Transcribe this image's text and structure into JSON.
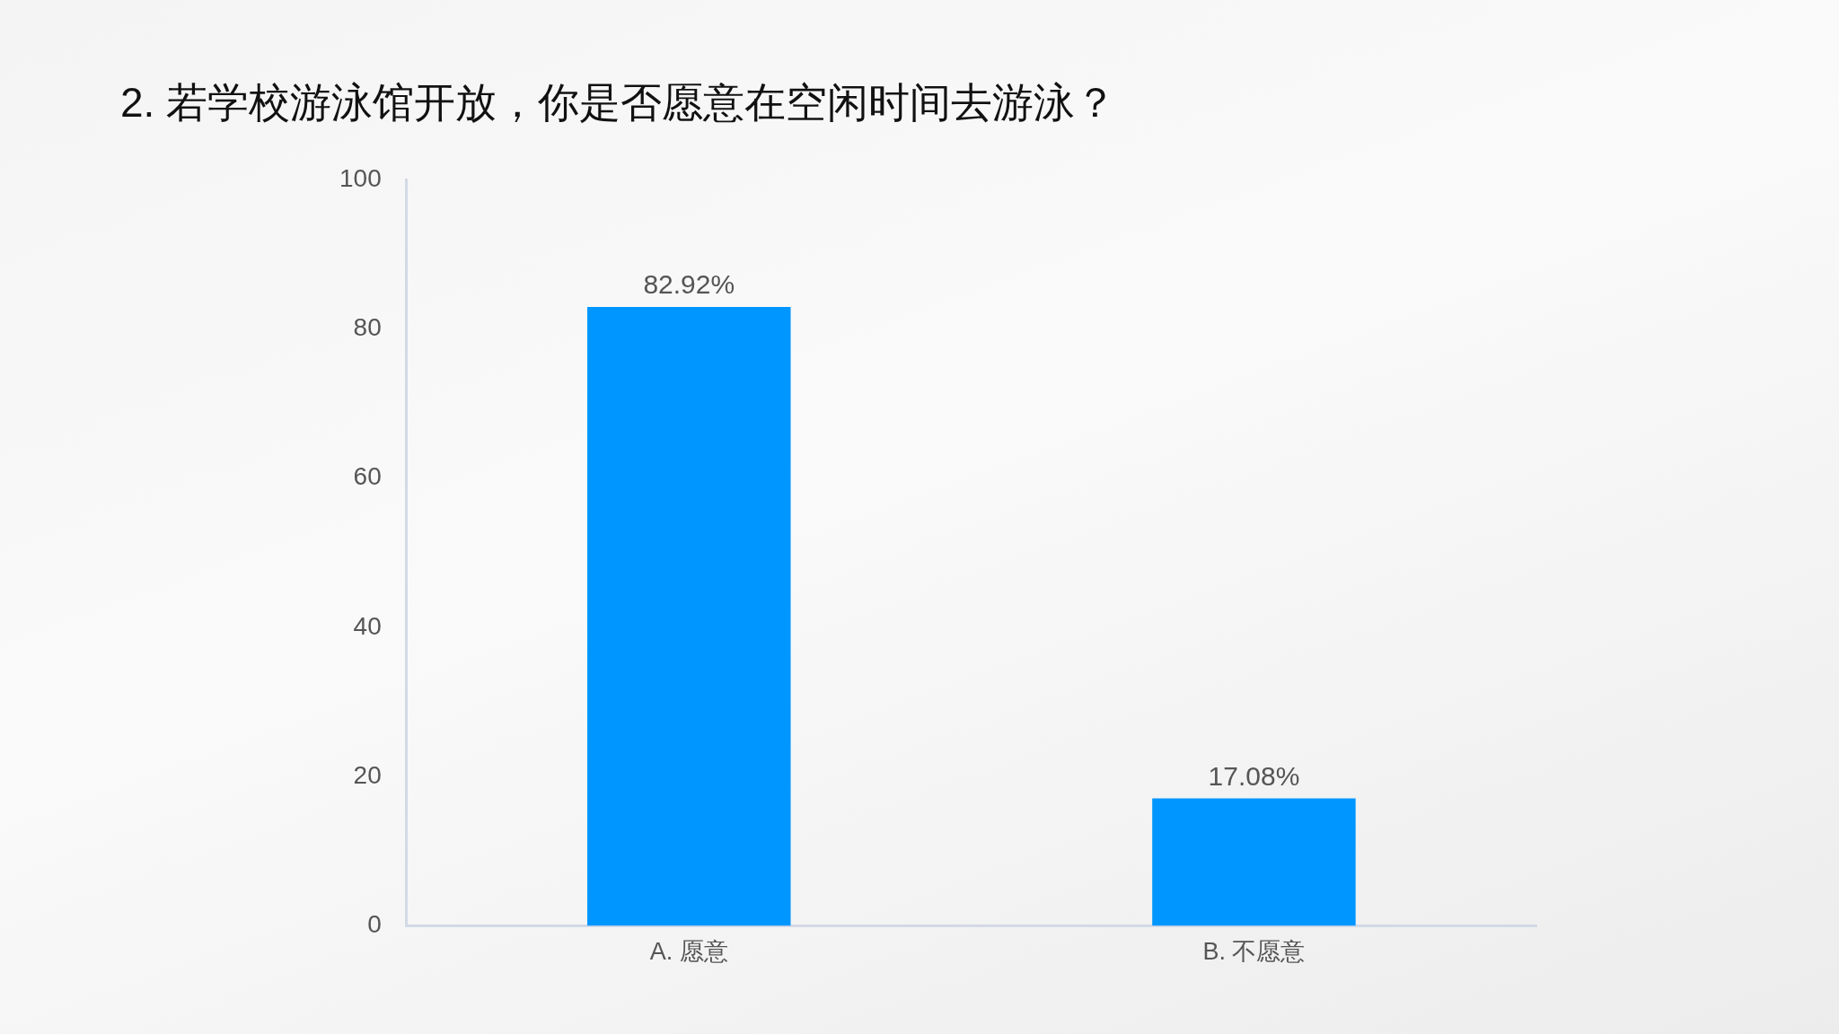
{
  "chart_data": {
    "type": "bar",
    "title": "2.  若学校游泳馆开放，你是否愿意在空闲时间去游泳？",
    "categories": [
      "A. 愿意",
      "B. 不愿意"
    ],
    "values": [
      82.92,
      17.08
    ],
    "value_labels": [
      "82.92%",
      "17.08%"
    ],
    "color": "#0096ff",
    "ylim": [
      0,
      100
    ],
    "yticks": [
      0,
      20,
      40,
      60,
      80,
      100
    ]
  }
}
